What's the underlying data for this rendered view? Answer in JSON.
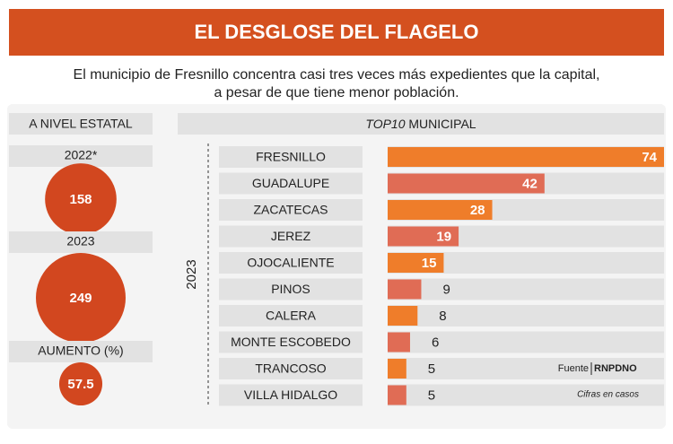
{
  "header": {
    "title": "EL DESGLOSE DEL FLAGELO",
    "subtitle_lines": [
      "El municipio de Fresnillo concentra casi tres veces más expedientes que la capital,",
      "a pesar de que tiene menor población."
    ]
  },
  "state": {
    "title": "A NIVEL ESTATAL",
    "color": "#d2471f",
    "items": [
      {
        "label": "2022*",
        "value": 158
      },
      {
        "label": "2023",
        "value": 249
      },
      {
        "label": "AUMENTO (%)",
        "value": 57.5
      }
    ]
  },
  "chart_data": {
    "type": "bar",
    "title_italic": "TOP10",
    "title": "MUNICIPAL",
    "year_label": "2023",
    "categories": [
      "FRESNILLO",
      "GUADALUPE",
      "ZACATECAS",
      "JEREZ",
      "OJOCALIENTE",
      "PINOS",
      "CALERA",
      "MONTE ESCOBEDO",
      "TRANCOSO",
      "VILLA HIDALGO"
    ],
    "values": [
      74,
      42,
      28,
      19,
      15,
      9,
      8,
      6,
      5,
      5
    ],
    "colors": [
      "#ef7d2a",
      "#e06c55",
      "#ef7d2a",
      "#e06c55",
      "#ef7d2a",
      "#e06c55",
      "#ef7d2a",
      "#e06c55",
      "#ef7d2a",
      "#e06c55"
    ],
    "xlim": [
      0,
      74
    ],
    "source_label": "Fuente",
    "source": "RNPDNO",
    "note": "Cifras en casos"
  }
}
